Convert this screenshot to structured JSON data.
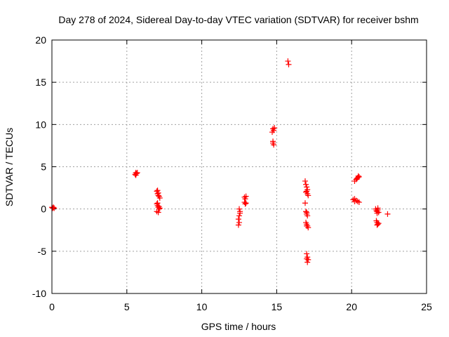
{
  "chart_data": {
    "type": "scatter",
    "title": "Day 278 of 2024, Sidereal Day-to-day VTEC variation (SDTVAR) for receiver bshm",
    "xlabel": "GPS time / hours",
    "ylabel": "SDTVAR / TECUs",
    "xlim": [
      0,
      25
    ],
    "ylim": [
      -10,
      20
    ],
    "xticks": [
      0,
      5,
      10,
      15,
      20,
      25
    ],
    "yticks": [
      -10,
      -5,
      0,
      5,
      10,
      15,
      20
    ],
    "xtick_labels": [
      "0",
      "5",
      "10",
      "15",
      "20",
      "25"
    ],
    "ytick_labels": [
      "-10",
      "-5",
      "0",
      "5",
      "10",
      "15",
      "20"
    ],
    "grid": true,
    "marker": "plus",
    "series": [
      {
        "name": "SDTVAR",
        "color": "#ff0000",
        "points": [
          [
            0.0,
            0.2
          ],
          [
            0.05,
            0.1
          ],
          [
            0.1,
            0.2
          ],
          [
            0.15,
            0.1
          ],
          [
            5.55,
            4.1
          ],
          [
            5.6,
            4.3
          ],
          [
            5.65,
            4.2
          ],
          [
            5.7,
            4.3
          ],
          [
            5.6,
            4.0
          ],
          [
            7.0,
            2.1
          ],
          [
            7.05,
            1.8
          ],
          [
            7.1,
            1.9
          ],
          [
            7.15,
            1.5
          ],
          [
            7.2,
            1.3
          ],
          [
            7.05,
            2.2
          ],
          [
            7.1,
            1.6
          ],
          [
            7.0,
            0.6
          ],
          [
            7.05,
            0.4
          ],
          [
            7.1,
            0.2
          ],
          [
            7.15,
            0.0
          ],
          [
            7.2,
            0.1
          ],
          [
            7.05,
            0.7
          ],
          [
            7.0,
            -0.3
          ],
          [
            7.1,
            -0.4
          ],
          [
            7.15,
            0.3
          ],
          [
            12.5,
            0.0
          ],
          [
            12.55,
            -0.5
          ],
          [
            12.5,
            -0.8
          ],
          [
            12.45,
            -1.2
          ],
          [
            12.5,
            -1.6
          ],
          [
            12.45,
            -1.9
          ],
          [
            12.55,
            -0.3
          ],
          [
            12.85,
            1.4
          ],
          [
            12.9,
            1.2
          ],
          [
            12.95,
            1.5
          ],
          [
            12.85,
            0.8
          ],
          [
            12.9,
            0.6
          ],
          [
            12.95,
            0.7
          ],
          [
            14.75,
            9.5
          ],
          [
            14.8,
            9.3
          ],
          [
            14.85,
            9.6
          ],
          [
            14.7,
            9.1
          ],
          [
            14.75,
            7.8
          ],
          [
            14.8,
            7.6
          ],
          [
            14.75,
            8.0
          ],
          [
            15.75,
            17.5
          ],
          [
            15.8,
            17.1
          ],
          [
            16.9,
            3.3
          ],
          [
            16.95,
            2.9
          ],
          [
            17.0,
            2.6
          ],
          [
            17.05,
            2.3
          ],
          [
            16.95,
            2.0
          ],
          [
            17.05,
            1.8
          ],
          [
            17.1,
            1.6
          ],
          [
            17.0,
            2.1
          ],
          [
            16.9,
            0.7
          ],
          [
            16.95,
            -0.3
          ],
          [
            17.0,
            -0.6
          ],
          [
            17.05,
            -0.8
          ],
          [
            17.0,
            -0.4
          ],
          [
            16.95,
            -1.6
          ],
          [
            17.0,
            -1.8
          ],
          [
            17.05,
            -2.0
          ],
          [
            17.1,
            -2.2
          ],
          [
            17.0,
            -2.0
          ],
          [
            17.0,
            -5.3
          ],
          [
            17.05,
            -5.7
          ],
          [
            17.1,
            -6.0
          ],
          [
            17.05,
            -6.3
          ],
          [
            17.0,
            -5.9
          ],
          [
            20.1,
            1.1
          ],
          [
            20.2,
            0.9
          ],
          [
            20.3,
            1.0
          ],
          [
            20.4,
            0.9
          ],
          [
            20.5,
            0.8
          ],
          [
            20.2,
            1.2
          ],
          [
            20.2,
            3.3
          ],
          [
            20.3,
            3.5
          ],
          [
            20.4,
            3.7
          ],
          [
            20.5,
            3.8
          ],
          [
            20.35,
            3.6
          ],
          [
            20.45,
            3.9
          ],
          [
            21.6,
            0.0
          ],
          [
            21.65,
            -0.2
          ],
          [
            21.7,
            -0.3
          ],
          [
            21.75,
            -0.1
          ],
          [
            21.8,
            -0.4
          ],
          [
            21.7,
            -0.5
          ],
          [
            21.75,
            0.1
          ],
          [
            21.65,
            -1.4
          ],
          [
            21.7,
            -1.6
          ],
          [
            21.75,
            -1.8
          ],
          [
            21.8,
            -1.7
          ],
          [
            21.7,
            -1.9
          ],
          [
            22.4,
            -0.6
          ]
        ]
      }
    ]
  }
}
